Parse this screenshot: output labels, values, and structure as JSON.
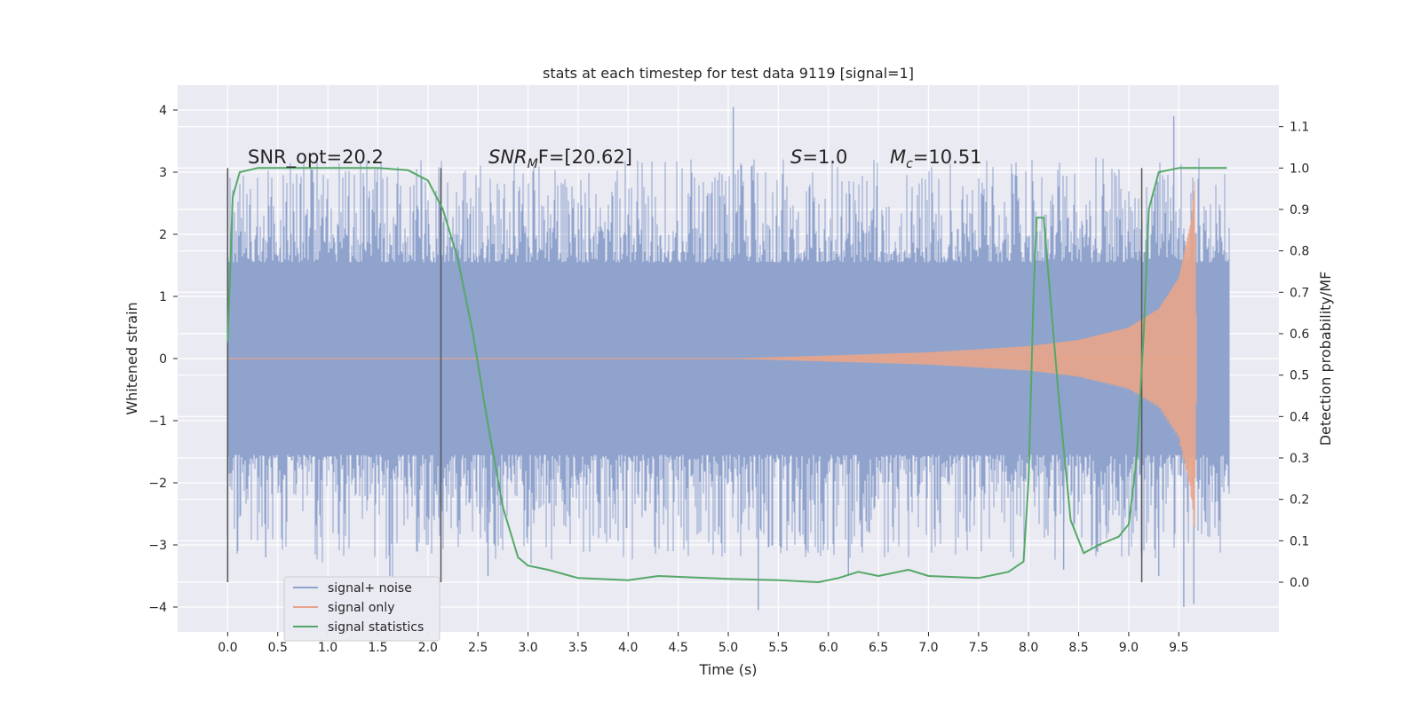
{
  "chart_data": {
    "type": "line",
    "title": "stats at each timestep for test data 9119 [signal=1]",
    "xlabel": "Time (s)",
    "ylabel": "Whitened strain",
    "ylabel_right": "Detection probability/MF",
    "xlim": [
      -0.5,
      10.5
    ],
    "ylim": [
      -4.4,
      4.4
    ],
    "ylim_right": [
      -0.12,
      1.2
    ],
    "x_ticks": [
      0.0,
      0.5,
      1.0,
      1.5,
      2.0,
      2.5,
      3.0,
      3.5,
      4.0,
      4.5,
      5.0,
      5.5,
      6.0,
      6.5,
      7.0,
      7.5,
      8.0,
      8.5,
      9.0,
      9.5
    ],
    "x_tick_labels": [
      "0.0",
      "0.5",
      "1.0",
      "1.5",
      "2.0",
      "2.5",
      "3.0",
      "3.5",
      "4.0",
      "4.5",
      "5.0",
      "5.5",
      "6.0",
      "6.5",
      "7.0",
      "7.5",
      "8.0",
      "8.5",
      "9.0",
      "9.5"
    ],
    "y_ticks": [
      -4,
      -3,
      -2,
      -1,
      0,
      1,
      2,
      3,
      4
    ],
    "y_tick_labels": [
      "−4",
      "−3",
      "−2",
      "−1",
      "0",
      "1",
      "2",
      "3",
      "4"
    ],
    "y_right_ticks": [
      0.0,
      0.1,
      0.2,
      0.3,
      0.4,
      0.5,
      0.6,
      0.7,
      0.8,
      0.9,
      1.0,
      1.1
    ],
    "y_right_tick_labels": [
      "0.0",
      "0.1",
      "0.2",
      "0.3",
      "0.4",
      "0.5",
      "0.6",
      "0.7",
      "0.8",
      "0.9",
      "1.0",
      "1.1"
    ],
    "grid": true,
    "legend_position": "lower-left",
    "colors": {
      "background": "#eaeaf2",
      "noise": "#8fa3cd",
      "signal": "#e8a58a",
      "stats": "#55a868",
      "vline": "#555555"
    },
    "annotations": {
      "snr_opt": "SNR_opt=20.2",
      "snr_mf_base": "SNR",
      "snr_mf_sub": "M",
      "snr_mf_rest": "F=[20.62]",
      "s_base": "S",
      "s_rest": "=1.0",
      "mc_base": "M",
      "mc_sub": "c",
      "mc_rest": "=10.51"
    },
    "vertical_markers": [
      0.0,
      2.13,
      9.13
    ],
    "series": [
      {
        "name": "signal+ noise",
        "kind": "noise",
        "x_range": [
          0.0,
          10.0
        ],
        "envelope_core": 1.25,
        "typical_peak": 2.6,
        "peaks": [
          {
            "x": 0.1,
            "y": -3.1
          },
          {
            "x": 0.38,
            "y": -3.2
          },
          {
            "x": 1.62,
            "y": -3.5
          },
          {
            "x": 2.6,
            "y": -3.5
          },
          {
            "x": 5.05,
            "y": 4.05
          },
          {
            "x": 5.3,
            "y": -4.05
          },
          {
            "x": 6.2,
            "y": -3.5
          },
          {
            "x": 8.35,
            "y": -3.4
          },
          {
            "x": 9.45,
            "y": 3.9
          },
          {
            "x": 9.55,
            "y": -4.0
          },
          {
            "x": 9.65,
            "y": -3.95
          },
          {
            "x": 9.3,
            "y": -3.5
          }
        ]
      },
      {
        "name": "signal only",
        "kind": "chirp",
        "x_range": [
          0.0,
          9.68
        ],
        "amplitude_points": [
          [
            0.0,
            0.0
          ],
          [
            5.0,
            0.0
          ],
          [
            6.0,
            0.05
          ],
          [
            7.0,
            0.1
          ],
          [
            8.0,
            0.2
          ],
          [
            8.5,
            0.3
          ],
          [
            9.0,
            0.5
          ],
          [
            9.3,
            0.8
          ],
          [
            9.5,
            1.3
          ],
          [
            9.62,
            2.2
          ],
          [
            9.66,
            2.9
          ],
          [
            9.68,
            0.0
          ]
        ]
      },
      {
        "name": "signal statistics",
        "kind": "line",
        "axis": "right",
        "points": [
          [
            0.0,
            0.58
          ],
          [
            0.05,
            0.93
          ],
          [
            0.12,
            0.99
          ],
          [
            0.3,
            1.0
          ],
          [
            1.0,
            1.0
          ],
          [
            1.5,
            1.0
          ],
          [
            1.8,
            0.995
          ],
          [
            2.0,
            0.97
          ],
          [
            2.15,
            0.9
          ],
          [
            2.3,
            0.78
          ],
          [
            2.45,
            0.6
          ],
          [
            2.6,
            0.38
          ],
          [
            2.75,
            0.18
          ],
          [
            2.9,
            0.06
          ],
          [
            3.0,
            0.04
          ],
          [
            3.2,
            0.03
          ],
          [
            3.5,
            0.01
          ],
          [
            4.0,
            0.005
          ],
          [
            4.3,
            0.015
          ],
          [
            5.0,
            0.008
          ],
          [
            5.5,
            0.005
          ],
          [
            5.9,
            0.0
          ],
          [
            6.1,
            0.01
          ],
          [
            6.3,
            0.025
          ],
          [
            6.5,
            0.015
          ],
          [
            6.8,
            0.03
          ],
          [
            7.0,
            0.015
          ],
          [
            7.5,
            0.01
          ],
          [
            7.8,
            0.025
          ],
          [
            7.95,
            0.05
          ],
          [
            8.0,
            0.25
          ],
          [
            8.05,
            0.7
          ],
          [
            8.08,
            0.88
          ],
          [
            8.15,
            0.88
          ],
          [
            8.3,
            0.45
          ],
          [
            8.42,
            0.15
          ],
          [
            8.55,
            0.07
          ],
          [
            8.7,
            0.09
          ],
          [
            8.9,
            0.11
          ],
          [
            9.0,
            0.14
          ],
          [
            9.08,
            0.3
          ],
          [
            9.15,
            0.6
          ],
          [
            9.2,
            0.9
          ],
          [
            9.3,
            0.99
          ],
          [
            9.5,
            1.0
          ],
          [
            9.98,
            1.0
          ]
        ]
      }
    ]
  }
}
